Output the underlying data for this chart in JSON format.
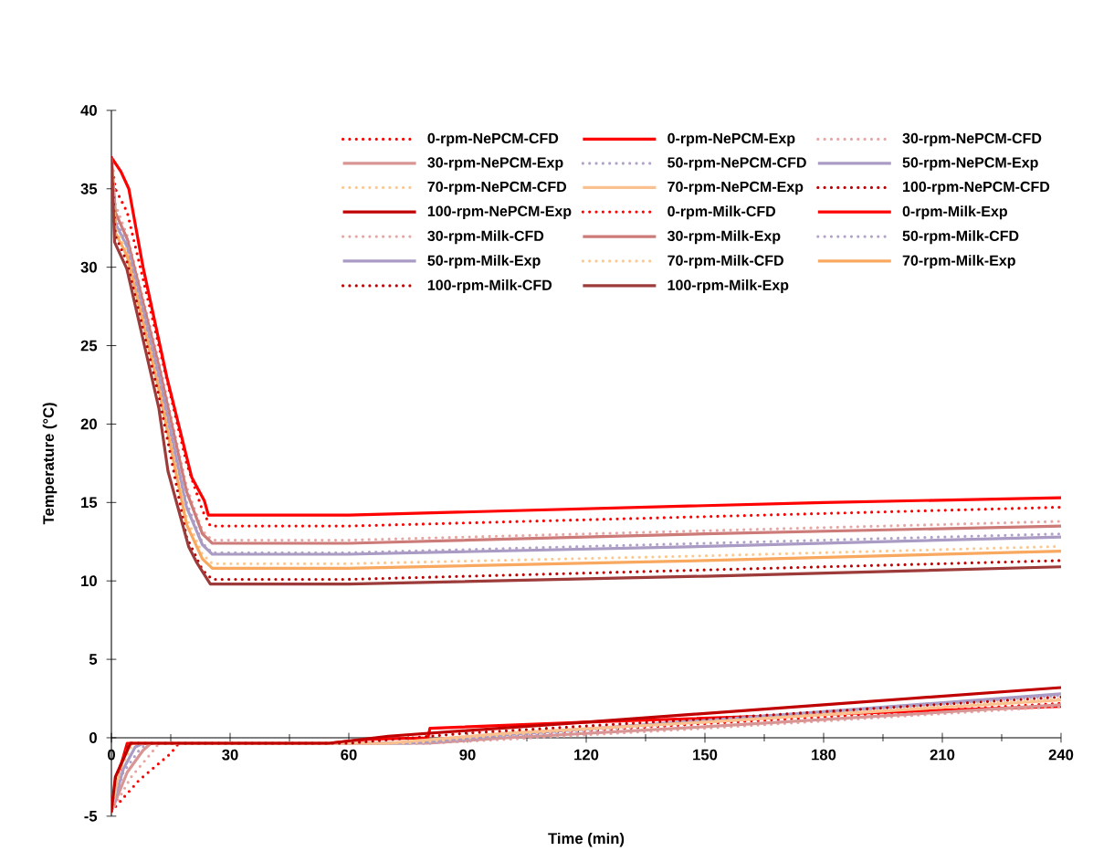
{
  "chart_data": {
    "type": "line",
    "xlabel": "Time (min)",
    "ylabel": "Temperature (°C)",
    "xlim": [
      0,
      240
    ],
    "ylim": [
      -5,
      40
    ],
    "xticks": [
      0,
      30,
      60,
      90,
      120,
      150,
      180,
      210,
      240
    ],
    "yticks": [
      -5,
      0,
      5,
      10,
      15,
      20,
      25,
      30,
      35,
      40
    ],
    "grid": false,
    "legend": "top right",
    "series": [
      {
        "name": "0-rpm-NePCM-CFD",
        "color": "#ff0000",
        "line_style": "dotted",
        "x": [
          0,
          7,
          15,
          17,
          70,
          90,
          150,
          240
        ],
        "values": [
          -4.7,
          -2.7,
          -1,
          -0.35,
          -0.35,
          0,
          0.9,
          2.2
        ]
      },
      {
        "name": "0-rpm-NePCM-Exp",
        "color": "#ff0000",
        "line_style": "solid",
        "x": [
          0,
          1,
          4,
          55,
          65,
          80,
          80.5,
          120,
          180,
          240
        ],
        "values": [
          -4.7,
          -3,
          -0.35,
          -0.35,
          -0.1,
          0,
          0.6,
          1.0,
          1.5,
          2.0
        ]
      },
      {
        "name": "30-rpm-NePCM-CFD",
        "color": "#e6a6a4",
        "line_style": "dotted",
        "x": [
          0,
          5,
          10,
          12,
          80,
          100,
          150,
          240
        ],
        "values": [
          -4.7,
          -2.5,
          -1,
          -0.35,
          -0.35,
          -0.1,
          0.6,
          2.0
        ]
      },
      {
        "name": "30-rpm-NePCM-Exp",
        "color": "#d99594",
        "line_style": "solid",
        "x": [
          0,
          4,
          8,
          10,
          80,
          100,
          150,
          240
        ],
        "values": [
          -4.7,
          -2.2,
          -0.8,
          -0.35,
          -0.35,
          0,
          0.7,
          2.1
        ]
      },
      {
        "name": "50-rpm-NePCM-CFD",
        "color": "#b3a2c7",
        "line_style": "dotted",
        "x": [
          0,
          3,
          7,
          9,
          80,
          100,
          150,
          240
        ],
        "values": [
          -4.7,
          -2.2,
          -0.8,
          -0.35,
          -0.35,
          0.1,
          1.0,
          2.7
        ]
      },
      {
        "name": "50-rpm-NePCM-Exp",
        "color": "#a99bc4",
        "line_style": "solid",
        "x": [
          0,
          3,
          6,
          8,
          75,
          100,
          150,
          240
        ],
        "values": [
          -4.7,
          -2,
          -0.6,
          -0.35,
          -0.35,
          0.2,
          1.1,
          2.8
        ]
      },
      {
        "name": "70-rpm-NePCM-CFD",
        "color": "#fcc890",
        "line_style": "dotted",
        "x": [
          0,
          2,
          5,
          6,
          75,
          100,
          150,
          240
        ],
        "values": [
          -4.7,
          -2.2,
          -0.6,
          -0.35,
          -0.35,
          0.2,
          1.0,
          2.5
        ]
      },
      {
        "name": "70-rpm-NePCM-Exp",
        "color": "#fac08f",
        "line_style": "solid",
        "x": [
          0,
          2,
          4.5,
          5.5,
          70,
          100,
          150,
          240
        ],
        "values": [
          -4.7,
          -2,
          -0.5,
          -0.35,
          -0.35,
          0.3,
          1.0,
          2.4
        ]
      },
      {
        "name": "100-rpm-NePCM-CFD",
        "color": "#c00000",
        "line_style": "dotted",
        "x": [
          0,
          1,
          4.5,
          60,
          90,
          150,
          240
        ],
        "values": [
          -4.7,
          -2.6,
          -0.35,
          -0.35,
          0.3,
          1.2,
          2.6
        ]
      },
      {
        "name": "100-rpm-NePCM-Exp",
        "color": "#c00000",
        "line_style": "solid",
        "x": [
          0,
          1,
          4.8,
          55,
          70,
          120,
          180,
          240
        ],
        "values": [
          -4.7,
          -2.5,
          -0.35,
          -0.35,
          0.1,
          1.0,
          2.1,
          3.2
        ]
      },
      {
        "name": "0-rpm-Milk-CFD",
        "color": "#ff0000",
        "line_style": "dotted",
        "x": [
          0,
          1,
          4,
          12,
          19,
          23,
          25,
          60,
          150,
          240
        ],
        "values": [
          37,
          35,
          33.5,
          25,
          17.5,
          14.5,
          13.5,
          13.5,
          14.1,
          14.7
        ]
      },
      {
        "name": "0-rpm-Milk-Exp",
        "color": "#ff0000",
        "line_style": "solid",
        "x": [
          0,
          2.4,
          4.4,
          8,
          14,
          20.3,
          23.5,
          24.5,
          60,
          120,
          180,
          240
        ],
        "values": [
          37,
          36.1,
          35,
          30,
          23,
          16.6,
          15.1,
          14.2,
          14.2,
          14.6,
          15,
          15.3
        ]
      },
      {
        "name": "30-rpm-Milk-CFD",
        "color": "#e6a6a4",
        "line_style": "dotted",
        "x": [
          0,
          1,
          4,
          12,
          19,
          23,
          25.5,
          60,
          150,
          240
        ],
        "values": [
          37,
          34,
          32,
          24,
          16,
          13.2,
          12.6,
          12.6,
          13.2,
          13.8
        ]
      },
      {
        "name": "30-rpm-Milk-Exp",
        "color": "#cd7b79",
        "line_style": "solid",
        "x": [
          0,
          1,
          4,
          12,
          19,
          23,
          25.5,
          60,
          150,
          240
        ],
        "values": [
          37,
          33.5,
          31.8,
          23.7,
          15.7,
          13,
          12.4,
          12.4,
          13,
          13.5
        ]
      },
      {
        "name": "50-rpm-Milk-CFD",
        "color": "#b3a2c7",
        "line_style": "dotted",
        "x": [
          0,
          1,
          4,
          12,
          19,
          23,
          25.5,
          60,
          150,
          240
        ],
        "values": [
          37,
          33,
          31.5,
          23.3,
          15,
          12.4,
          11.8,
          11.8,
          12.4,
          13
        ]
      },
      {
        "name": "50-rpm-Milk-Exp",
        "color": "#a99bc4",
        "line_style": "solid",
        "x": [
          0,
          1,
          4,
          12,
          19,
          23,
          25.5,
          60,
          150,
          240
        ],
        "values": [
          37,
          32.8,
          31.3,
          23,
          14.7,
          12.3,
          11.7,
          11.7,
          12.2,
          12.8
        ]
      },
      {
        "name": "70-rpm-Milk-CFD",
        "color": "#fcc890",
        "line_style": "dotted",
        "x": [
          0,
          1,
          4,
          12,
          19,
          23,
          25.5,
          60,
          150,
          240
        ],
        "values": [
          37,
          32.5,
          31,
          22.5,
          14,
          11.7,
          11.1,
          11.1,
          11.6,
          12.2
        ]
      },
      {
        "name": "70-rpm-Milk-Exp",
        "color": "#f9a860",
        "line_style": "solid",
        "x": [
          0,
          1,
          4,
          12,
          19,
          23,
          25.5,
          60,
          150,
          240
        ],
        "values": [
          37,
          32.2,
          30.7,
          22.2,
          13.6,
          11.4,
          10.8,
          10.8,
          11.3,
          11.9
        ]
      },
      {
        "name": "100-rpm-Milk-CFD",
        "color": "#c00000",
        "line_style": "dotted",
        "x": [
          0,
          1,
          4,
          12,
          19,
          23,
          25.5,
          60,
          150,
          240
        ],
        "values": [
          37,
          32,
          30.3,
          21.8,
          12.8,
          10.7,
          10.1,
          10.1,
          10.7,
          11.3
        ]
      },
      {
        "name": "100-rpm-Milk-Exp",
        "color": "#9c3b39",
        "line_style": "solid",
        "x": [
          0,
          0.8,
          3.9,
          12,
          14.3,
          19.5,
          21.5,
          25,
          60,
          150,
          240
        ],
        "values": [
          37,
          31.6,
          29.9,
          21,
          17,
          12.2,
          11.2,
          9.8,
          9.8,
          10.3,
          10.9
        ]
      }
    ]
  }
}
